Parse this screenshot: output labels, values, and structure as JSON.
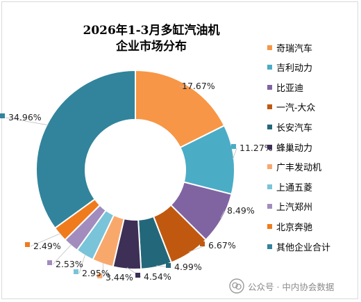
{
  "title_lines": [
    "2026年1-3月多缸汽油机",
    "企业市场分布"
  ],
  "chart_data": {
    "type": "pie",
    "variant": "doughnut",
    "title": "2026年1-3月多缸汽油机 企业市场分布",
    "legend_position": "right",
    "categories": [
      "奇瑞汽车",
      "吉利动力",
      "比亚迪",
      "一汽-大众",
      "长安汽车",
      "蜂巢动力",
      "广丰发动机",
      "上通五菱",
      "上汽郑州",
      "北京奔驰",
      "其他企业合计"
    ],
    "values": [
      17.67,
      11.27,
      8.49,
      6.67,
      4.99,
      4.54,
      3.44,
      2.95,
      2.53,
      2.49,
      34.96
    ],
    "value_labels": [
      "17.67%",
      "11.27%",
      "8.49%",
      "6.67%",
      "4.99%",
      "4.54%",
      "3.44%",
      "2.95%",
      "2.53%",
      "2.49%",
      "34.96%"
    ],
    "colors": [
      "#F79646",
      "#4BACC6",
      "#8064A2",
      "#C0590F",
      "#23687A",
      "#3D2F56",
      "#F9A86C",
      "#79C4D9",
      "#A28CBE",
      "#F07B1C",
      "#31849B"
    ]
  },
  "watermark": {
    "icon": "wechat-official-account-icon",
    "text": "公众号 · 中内协会数据"
  }
}
